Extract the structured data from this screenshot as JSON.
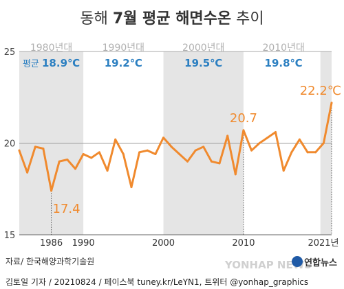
{
  "chart_data": {
    "type": "line",
    "title_normal": "동해 ",
    "title_bold": "7월 평균 해면수온",
    "title_tail": " 추이",
    "xlabel": "",
    "ylabel": "",
    "ylim": [
      15,
      25
    ],
    "yticks": [
      "25",
      "20",
      "15"
    ],
    "ytick_values": [
      25,
      20,
      15
    ],
    "xlim": [
      1982,
      2021
    ],
    "xticks": [
      {
        "value": 1986,
        "label": "1986"
      },
      {
        "value": 1990,
        "label": "1990"
      },
      {
        "value": 2000,
        "label": "2000"
      },
      {
        "value": 2010,
        "label": "2010"
      },
      {
        "value": 2021,
        "label": "2021년"
      }
    ],
    "decades": [
      {
        "label": "1980년대",
        "start": 1982,
        "end": 1990,
        "shaded": true,
        "avg": "18.9℃",
        "avg_prefix": "평균 "
      },
      {
        "label": "1990년대",
        "start": 1990,
        "end": 2000,
        "shaded": false,
        "avg": "19.2℃",
        "avg_prefix": ""
      },
      {
        "label": "2000년대",
        "start": 2000,
        "end": 2010,
        "shaded": true,
        "avg": "19.5℃",
        "avg_prefix": ""
      },
      {
        "label": "2010년대",
        "start": 2010,
        "end": 2020,
        "shaded": false,
        "avg": "19.8℃",
        "avg_prefix": ""
      }
    ],
    "series": [
      {
        "color": "#f08a2e",
        "x": [
          1982,
          1983,
          1984,
          1985,
          1986,
          1987,
          1988,
          1989,
          1990,
          1991,
          1992,
          1993,
          1994,
          1995,
          1996,
          1997,
          1998,
          1999,
          2000,
          2001,
          2002,
          2003,
          2004,
          2005,
          2006,
          2007,
          2008,
          2009,
          2010,
          2011,
          2012,
          2013,
          2014,
          2015,
          2016,
          2017,
          2018,
          2019,
          2020,
          2021
        ],
        "values": [
          19.6,
          18.4,
          19.8,
          19.7,
          17.4,
          19.0,
          19.1,
          18.6,
          19.4,
          19.2,
          19.5,
          18.5,
          20.2,
          19.4,
          17.6,
          19.5,
          19.6,
          19.4,
          20.3,
          19.8,
          19.4,
          19.0,
          19.6,
          19.8,
          19.0,
          18.9,
          20.4,
          18.3,
          20.7,
          19.6,
          20.0,
          20.3,
          20.6,
          18.5,
          19.5,
          20.2,
          19.5,
          19.5,
          20.0,
          22.2
        ]
      }
    ],
    "annotations": [
      {
        "x": 1986,
        "y": 17.4,
        "label": "17.4",
        "position": "below"
      },
      {
        "x": 2010,
        "y": 20.7,
        "label": "20.7",
        "position": "above"
      },
      {
        "x": 2021,
        "y": 22.2,
        "label": "22.2℃",
        "position": "above"
      }
    ],
    "grid": false,
    "reference_line": 20,
    "colors": {
      "line": "#f08a2e",
      "shade": "#e5e5e5",
      "decade_text": "#b0b0b0",
      "avg_text": "#2b7fc1",
      "axis_text": "#444444"
    }
  },
  "footer": {
    "source": "자료/ 한국해양과학기술원",
    "logo_text": "연합뉴스",
    "logo_watermark": "YONHAP NEWS",
    "credit": "김토일 기자 / 20210824 / 페이스북 tuney.kr/LeYN1, 트위터 @yonhap_graphics"
  }
}
